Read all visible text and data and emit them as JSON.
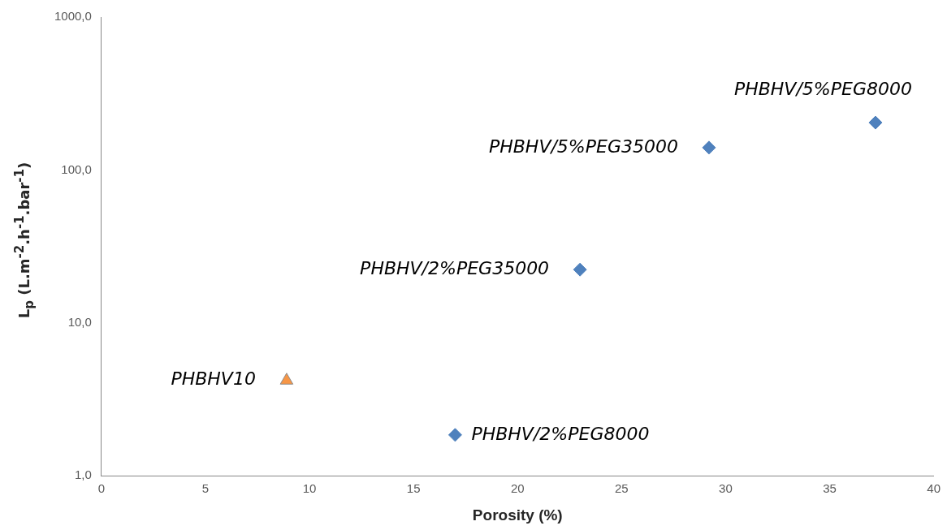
{
  "chart_data": {
    "type": "scatter",
    "xlabel": "Porosity (%)",
    "ylabel": "L$_{p}$ (L.m$^{-2}$.h$^{-1}$.bar$^{-1}$)",
    "log": "y",
    "grid": false,
    "legend": false,
    "xlim": [
      0,
      40
    ],
    "xticks": [
      0,
      5,
      10,
      15,
      20,
      25,
      30,
      35,
      40
    ],
    "ylim": [
      1,
      1000
    ],
    "yticks": [
      {
        "value": 1,
        "label": "1,0"
      },
      {
        "value": 10,
        "label": "10,0"
      },
      {
        "value": 100,
        "label": "100,0"
      },
      {
        "value": 1000,
        "label": "1000,0"
      }
    ],
    "series": [
      {
        "color": "#4f81bd",
        "marker": "diamond",
        "x": [
          37.2,
          29.2,
          23.0,
          17.0
        ],
        "values": [
          204,
          140,
          22.3,
          1.85
        ]
      },
      {
        "color": "#f79646",
        "marker": "triangle",
        "x": [
          8.9
        ],
        "values": [
          4.2
        ]
      }
    ],
    "annotations": [
      {
        "text": "PHBHV/5%PEG8000",
        "x": 37.2,
        "y": 204
      },
      {
        "text": "PHBHV/5%PEG35000",
        "x": 29.2,
        "y": 140
      },
      {
        "text": "PHBHV/2%PEG35000",
        "x": 23.0,
        "y": 22.3
      },
      {
        "text": "PHBHV10",
        "x": 8.9,
        "y": 4.2
      },
      {
        "text": "PHBHV/2%PEG8000",
        "x": 17.0,
        "y": 1.85
      }
    ]
  }
}
